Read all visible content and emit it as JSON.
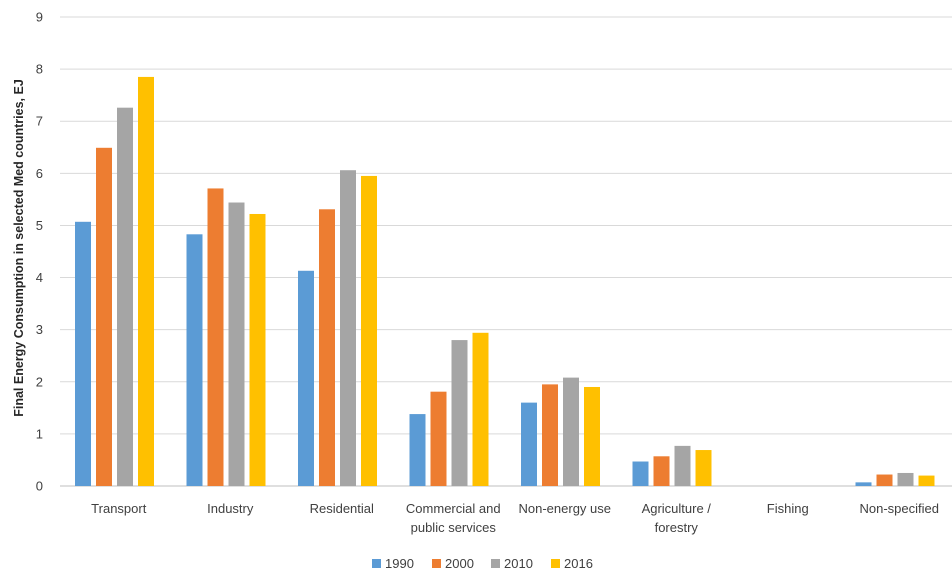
{
  "chart_data": {
    "type": "bar",
    "title": "",
    "xlabel": "",
    "ylabel": "Final Energy Consumption in selected Med countries, EJ",
    "ylim": [
      0,
      9
    ],
    "yticks": [
      0,
      1,
      2,
      3,
      4,
      5,
      6,
      7,
      8,
      9
    ],
    "grid": true,
    "legend_position": "bottom",
    "categories": [
      [
        "Transport"
      ],
      [
        "Industry"
      ],
      [
        "Residential"
      ],
      [
        "Commercial and",
        "public services"
      ],
      [
        "Non-energy use"
      ],
      [
        "Agriculture /",
        "forestry"
      ],
      [
        "Fishing"
      ],
      [
        "Non-specified"
      ]
    ],
    "series": [
      {
        "name": "1990",
        "color": "#5B9BD5",
        "values": [
          5.07,
          4.83,
          4.13,
          1.38,
          1.6,
          0.47,
          0,
          0.07
        ]
      },
      {
        "name": "2000",
        "color": "#ED7D31",
        "values": [
          6.49,
          5.71,
          5.31,
          1.81,
          1.95,
          0.57,
          0,
          0.22
        ]
      },
      {
        "name": "2010",
        "color": "#A5A5A5",
        "values": [
          7.26,
          5.44,
          6.06,
          2.8,
          2.08,
          0.77,
          0,
          0.25
        ]
      },
      {
        "name": "2016",
        "color": "#FFC000",
        "values": [
          7.85,
          5.22,
          5.95,
          2.94,
          1.9,
          0.69,
          0,
          0.2
        ]
      }
    ]
  }
}
